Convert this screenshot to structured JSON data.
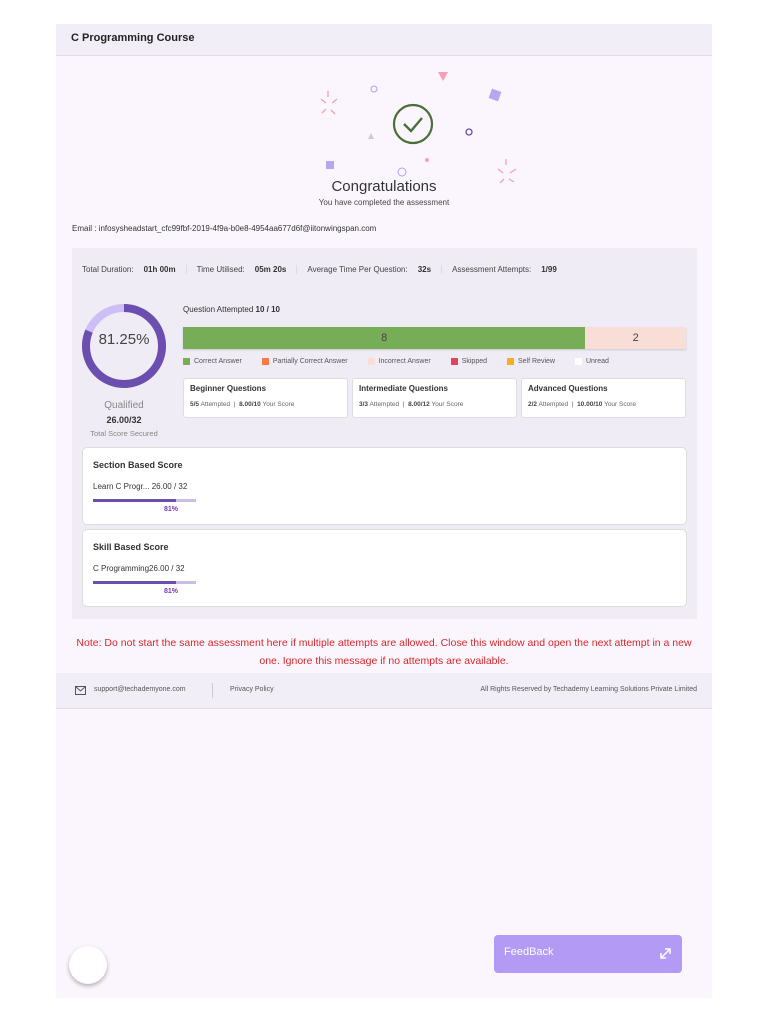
{
  "header": {
    "title": "C Programming Course"
  },
  "hero": {
    "title": "Congratulations",
    "subtitle": "You have completed the assessment",
    "icon": "check-circle-icon"
  },
  "email": "Email : infosysheadstart_cfc99fbf-2019-4f9a-b0e8-4954aa677d6f@iitonwingspan.com",
  "stats": [
    {
      "label": "Total Duration:",
      "value": "01h 00m"
    },
    {
      "label": "Time Utilised:",
      "value": "05m 20s"
    },
    {
      "label": "Average Time Per Question:",
      "value": "32s"
    },
    {
      "label": "Assessment Attempts:",
      "value": "1/99"
    }
  ],
  "score": {
    "percent_label": "81.25%",
    "percent": 81.25,
    "status": "Qualified",
    "score": "26.00/32",
    "caption": "Total Score Secured"
  },
  "attempted": {
    "label": "Question Attempted",
    "value": "10 / 10",
    "correct": "8",
    "incorrect": "2",
    "correct_count": 8,
    "incorrect_count": 2
  },
  "legend": [
    {
      "label": "Correct Answer",
      "color": "#78ad57"
    },
    {
      "label": "Partially Correct Answer",
      "color": "#fa7a45"
    },
    {
      "label": "Incorrect Answer",
      "color": "#f9ded8"
    },
    {
      "label": "Skipped",
      "color": "#e2445c"
    },
    {
      "label": "Self Review",
      "color": "#f2b21f"
    },
    {
      "label": "Unread",
      "color": "#ffffff"
    }
  ],
  "levels": [
    {
      "title": "Beginner Questions",
      "attempted": "5/5",
      "attempted_label": "Attempted",
      "score": "8.00/10",
      "score_label": "Your Score"
    },
    {
      "title": "Intermediate Questions",
      "attempted": "3/3",
      "attempted_label": "Attempted",
      "score": "8.00/12",
      "score_label": "Your Score"
    },
    {
      "title": "Advanced Questions",
      "attempted": "2/2",
      "attempted_label": "Attempted",
      "score": "10.00/10",
      "score_label": "Your Score"
    }
  ],
  "section": {
    "title": "Section Based Score",
    "name": "Learn C Progr...",
    "score": " 26.00 / 32",
    "pct": "81%",
    "progress": 81
  },
  "skill": {
    "title": "Skill Based Score",
    "name": "C Programming",
    "score": "26.00 / 32",
    "pct": "81%",
    "progress": 81
  },
  "note": "Note: Do not start the same assessment here if multiple attempts are allowed. Close this window and open the next attempt in a new one. Ignore this message if no attempts are available.",
  "footer": {
    "email": "support@techademyone.com",
    "privacy": "Privacy Policy",
    "rights": "All Rights Reserved by Techademy Learning Solutions Private Limited"
  },
  "feedback": {
    "label": "FeedBack",
    "icon": "expand-icon"
  },
  "colors": {
    "accent": "#6a4fae",
    "note": "#d6282a",
    "feedback": "#b39af5"
  }
}
